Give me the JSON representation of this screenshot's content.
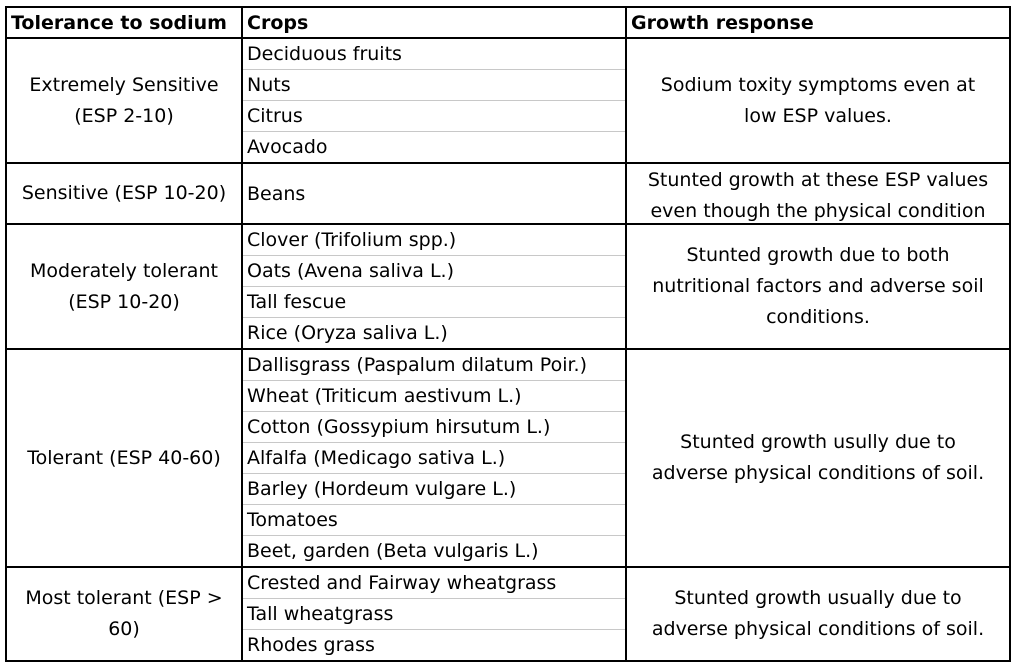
{
  "headers": {
    "tolerance": "Tolerance to sodium",
    "crops": "Crops",
    "response": "Growth response"
  },
  "rows": [
    {
      "category_lines": [
        "Extremely Sensitive",
        "(ESP 2-10)"
      ],
      "crops": [
        "Deciduous fruits",
        "Nuts",
        "Citrus",
        "Avocado"
      ],
      "response_lines": [
        "Sodium toxity symptoms even at",
        "low ESP values."
      ]
    },
    {
      "category_lines": [
        "Sensitive (ESP 10-20)"
      ],
      "crops": [
        "Beans"
      ],
      "response_lines": [
        "Stunted growth at these ESP values",
        "even though the physical condition"
      ]
    },
    {
      "category_lines": [
        "Moderately tolerant",
        "(ESP 10-20)"
      ],
      "crops": [
        "Clover (Trifolium spp.)",
        "Oats (Avena saliva L.)",
        "Tall fescue",
        "Rice (Oryza saliva L.)"
      ],
      "response_lines": [
        "Stunted growth due to both",
        "nutritional factors and adverse soil",
        "conditions."
      ]
    },
    {
      "category_lines": [
        "Tolerant (ESP 40-60)"
      ],
      "crops": [
        "Dallisgrass (Paspalum dilatum Poir.)",
        "Wheat (Triticum aestivum L.)",
        "Cotton (Gossypium hirsutum L.)",
        "Alfalfa (Medicago sativa L.)",
        "Barley (Hordeum vulgare L.)",
        "Tomatoes",
        "Beet, garden (Beta vulgaris L.)"
      ],
      "response_lines": [
        "Stunted growth usully due to",
        "adverse physical conditions of soil."
      ]
    },
    {
      "category_lines": [
        "Most tolerant (ESP >",
        "60)"
      ],
      "crops": [
        "Crested and Fairway wheatgrass",
        "Tall wheatgrass",
        "Rhodes grass"
      ],
      "response_lines": [
        "Stunted growth usually due to",
        "adverse physical conditions of soil."
      ]
    }
  ]
}
